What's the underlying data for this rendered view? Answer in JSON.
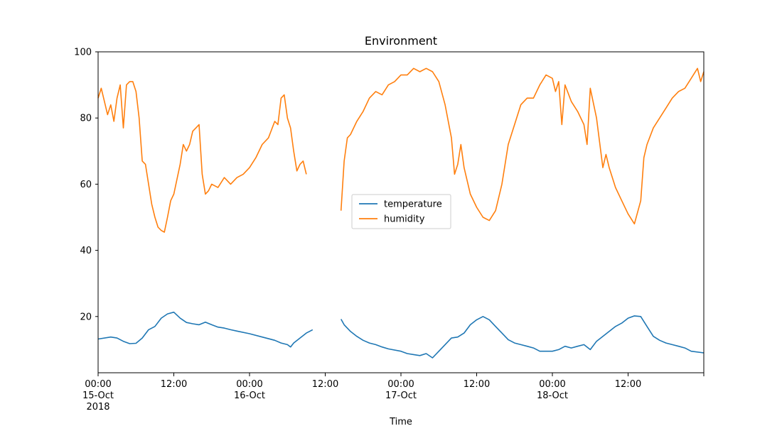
{
  "chart_data": {
    "type": "line",
    "title": "Environment",
    "xlabel": "Time",
    "ylabel": "",
    "xlim": [
      "2018-10-15 00:00",
      "2018-10-19 00:00"
    ],
    "ylim": [
      3,
      100
    ],
    "grid": false,
    "legend_position": "center",
    "x_ticks": [
      {
        "at": "2018-10-15 00:00",
        "lines": [
          "00:00",
          "15-Oct",
          "2018"
        ]
      },
      {
        "at": "2018-10-15 12:00",
        "lines": [
          "12:00"
        ]
      },
      {
        "at": "2018-10-16 00:00",
        "lines": [
          "00:00",
          "16-Oct"
        ]
      },
      {
        "at": "2018-10-16 12:00",
        "lines": [
          "12:00"
        ]
      },
      {
        "at": "2018-10-17 00:00",
        "lines": [
          "00:00",
          "17-Oct"
        ]
      },
      {
        "at": "2018-10-17 12:00",
        "lines": [
          "12:00"
        ]
      },
      {
        "at": "2018-10-18 00:00",
        "lines": [
          "00:00",
          "18-Oct"
        ]
      },
      {
        "at": "2018-10-18 12:00",
        "lines": [
          "12:00"
        ]
      },
      {
        "at": "2018-10-19 00:00",
        "lines": []
      }
    ],
    "y_ticks": [
      20,
      40,
      60,
      80,
      100
    ],
    "series": [
      {
        "name": "temperature",
        "color": "#1f77b4",
        "segments": [
          [
            [
              "2018-10-15 00:00",
              13.2
            ],
            [
              "2018-10-15 02:00",
              13.8
            ],
            [
              "2018-10-15 03:00",
              13.5
            ],
            [
              "2018-10-15 04:00",
              12.5
            ],
            [
              "2018-10-15 05:00",
              11.8
            ],
            [
              "2018-10-15 06:00",
              11.9
            ],
            [
              "2018-10-15 07:00",
              13.5
            ],
            [
              "2018-10-15 08:00",
              16.0
            ],
            [
              "2018-10-15 09:00",
              17.0
            ],
            [
              "2018-10-15 10:00",
              19.5
            ],
            [
              "2018-10-15 11:00",
              20.8
            ],
            [
              "2018-10-15 12:00",
              21.3
            ],
            [
              "2018-10-15 13:00",
              19.5
            ],
            [
              "2018-10-15 14:00",
              18.2
            ],
            [
              "2018-10-15 15:00",
              17.8
            ],
            [
              "2018-10-15 16:00",
              17.5
            ],
            [
              "2018-10-15 17:00",
              18.3
            ],
            [
              "2018-10-15 18:00",
              17.5
            ],
            [
              "2018-10-15 19:00",
              16.8
            ],
            [
              "2018-10-15 20:00",
              16.5
            ],
            [
              "2018-10-15 21:00",
              16.0
            ],
            [
              "2018-10-15 22:00",
              15.6
            ],
            [
              "2018-10-16 00:00",
              14.8
            ],
            [
              "2018-10-16 02:00",
              13.8
            ],
            [
              "2018-10-16 04:00",
              12.8
            ],
            [
              "2018-10-16 05:00",
              12.0
            ],
            [
              "2018-10-16 06:00",
              11.5
            ],
            [
              "2018-10-16 06:30",
              10.8
            ],
            [
              "2018-10-16 07:00",
              12.0
            ],
            [
              "2018-10-16 08:00",
              13.5
            ],
            [
              "2018-10-16 09:00",
              15.0
            ],
            [
              "2018-10-16 09:30",
              15.5
            ],
            [
              "2018-10-16 10:00",
              16.0
            ]
          ],
          [
            [
              "2018-10-16 14:30",
              19.2
            ],
            [
              "2018-10-16 15:00",
              17.5
            ],
            [
              "2018-10-16 16:00",
              15.5
            ],
            [
              "2018-10-16 17:00",
              14.0
            ],
            [
              "2018-10-16 18:00",
              12.8
            ],
            [
              "2018-10-16 19:00",
              12.0
            ],
            [
              "2018-10-16 20:00",
              11.5
            ],
            [
              "2018-10-16 21:00",
              10.8
            ],
            [
              "2018-10-16 22:00",
              10.2
            ],
            [
              "2018-10-17 00:00",
              9.5
            ],
            [
              "2018-10-17 01:00",
              8.8
            ],
            [
              "2018-10-17 02:00",
              8.5
            ],
            [
              "2018-10-17 03:00",
              8.2
            ],
            [
              "2018-10-17 04:00",
              8.8
            ],
            [
              "2018-10-17 05:00",
              7.5
            ],
            [
              "2018-10-17 06:00",
              9.5
            ],
            [
              "2018-10-17 07:00",
              11.5
            ],
            [
              "2018-10-17 08:00",
              13.5
            ],
            [
              "2018-10-17 09:00",
              13.8
            ],
            [
              "2018-10-17 10:00",
              15.0
            ],
            [
              "2018-10-17 11:00",
              17.5
            ],
            [
              "2018-10-17 12:00",
              19.0
            ],
            [
              "2018-10-17 13:00",
              20.0
            ],
            [
              "2018-10-17 14:00",
              19.0
            ],
            [
              "2018-10-17 15:00",
              17.0
            ],
            [
              "2018-10-17 16:00",
              15.0
            ],
            [
              "2018-10-17 17:00",
              13.0
            ],
            [
              "2018-10-17 18:00",
              12.0
            ],
            [
              "2018-10-17 19:00",
              11.5
            ],
            [
              "2018-10-17 20:00",
              11.0
            ],
            [
              "2018-10-17 21:00",
              10.5
            ],
            [
              "2018-10-17 22:00",
              9.5
            ],
            [
              "2018-10-18 00:00",
              9.5
            ],
            [
              "2018-10-18 01:00",
              10.0
            ],
            [
              "2018-10-18 02:00",
              11.0
            ],
            [
              "2018-10-18 03:00",
              10.5
            ],
            [
              "2018-10-18 04:00",
              11.0
            ],
            [
              "2018-10-18 05:00",
              11.5
            ],
            [
              "2018-10-18 06:00",
              10.0
            ],
            [
              "2018-10-18 07:00",
              12.5
            ],
            [
              "2018-10-18 08:00",
              14.0
            ],
            [
              "2018-10-18 09:00",
              15.5
            ],
            [
              "2018-10-18 10:00",
              17.0
            ],
            [
              "2018-10-18 11:00",
              18.0
            ],
            [
              "2018-10-18 12:00",
              19.5
            ],
            [
              "2018-10-18 13:00",
              20.2
            ],
            [
              "2018-10-18 14:00",
              20.0
            ],
            [
              "2018-10-18 15:00",
              17.0
            ],
            [
              "2018-10-18 16:00",
              14.0
            ],
            [
              "2018-10-18 17:00",
              12.8
            ],
            [
              "2018-10-18 18:00",
              12.0
            ],
            [
              "2018-10-18 19:00",
              11.5
            ],
            [
              "2018-10-18 20:00",
              11.0
            ],
            [
              "2018-10-18 21:00",
              10.5
            ],
            [
              "2018-10-18 22:00",
              9.5
            ],
            [
              "2018-10-19 00:00",
              9.0
            ]
          ]
        ]
      },
      {
        "name": "humidity",
        "color": "#ff7f0e",
        "segments": [
          [
            [
              "2018-10-15 00:00",
              86
            ],
            [
              "2018-10-15 00:30",
              89
            ],
            [
              "2018-10-15 01:00",
              85
            ],
            [
              "2018-10-15 01:30",
              81
            ],
            [
              "2018-10-15 02:00",
              84
            ],
            [
              "2018-10-15 02:30",
              79
            ],
            [
              "2018-10-15 03:00",
              86
            ],
            [
              "2018-10-15 03:30",
              90
            ],
            [
              "2018-10-15 04:00",
              77
            ],
            [
              "2018-10-15 04:30",
              90
            ],
            [
              "2018-10-15 05:00",
              91
            ],
            [
              "2018-10-15 05:30",
              91
            ],
            [
              "2018-10-15 06:00",
              88
            ],
            [
              "2018-10-15 06:30",
              80
            ],
            [
              "2018-10-15 07:00",
              67
            ],
            [
              "2018-10-15 07:30",
              66
            ],
            [
              "2018-10-15 08:00",
              60
            ],
            [
              "2018-10-15 08:30",
              54
            ],
            [
              "2018-10-15 09:00",
              50
            ],
            [
              "2018-10-15 09:30",
              47
            ],
            [
              "2018-10-15 10:00",
              46
            ],
            [
              "2018-10-15 10:30",
              45.5
            ],
            [
              "2018-10-15 11:00",
              50
            ],
            [
              "2018-10-15 11:30",
              55
            ],
            [
              "2018-10-15 12:00",
              57
            ],
            [
              "2018-10-15 13:00",
              66
            ],
            [
              "2018-10-15 13:30",
              72
            ],
            [
              "2018-10-15 14:00",
              70
            ],
            [
              "2018-10-15 14:30",
              72
            ],
            [
              "2018-10-15 15:00",
              76
            ],
            [
              "2018-10-15 15:30",
              77
            ],
            [
              "2018-10-15 16:00",
              78
            ],
            [
              "2018-10-15 16:30",
              63
            ],
            [
              "2018-10-15 17:00",
              57
            ],
            [
              "2018-10-15 17:30",
              58
            ],
            [
              "2018-10-15 18:00",
              60
            ],
            [
              "2018-10-15 19:00",
              59
            ],
            [
              "2018-10-15 20:00",
              62
            ],
            [
              "2018-10-15 21:00",
              60
            ],
            [
              "2018-10-15 22:00",
              62
            ],
            [
              "2018-10-15 23:00",
              63
            ],
            [
              "2018-10-16 00:00",
              65
            ],
            [
              "2018-10-16 01:00",
              68
            ],
            [
              "2018-10-16 02:00",
              72
            ],
            [
              "2018-10-16 03:00",
              74
            ],
            [
              "2018-10-16 04:00",
              79
            ],
            [
              "2018-10-16 04:30",
              78
            ],
            [
              "2018-10-16 05:00",
              86
            ],
            [
              "2018-10-16 05:30",
              87
            ],
            [
              "2018-10-16 06:00",
              80
            ],
            [
              "2018-10-16 06:30",
              77
            ],
            [
              "2018-10-16 07:00",
              70
            ],
            [
              "2018-10-16 07:30",
              64
            ],
            [
              "2018-10-16 08:00",
              66
            ],
            [
              "2018-10-16 08:30",
              67
            ],
            [
              "2018-10-16 09:00",
              63
            ]
          ],
          [
            [
              "2018-10-16 14:30",
              52
            ],
            [
              "2018-10-16 15:00",
              67
            ],
            [
              "2018-10-16 15:30",
              74
            ],
            [
              "2018-10-16 16:00",
              75
            ],
            [
              "2018-10-16 17:00",
              79
            ],
            [
              "2018-10-16 18:00",
              82
            ],
            [
              "2018-10-16 19:00",
              86
            ],
            [
              "2018-10-16 20:00",
              88
            ],
            [
              "2018-10-16 21:00",
              87
            ],
            [
              "2018-10-16 22:00",
              90
            ],
            [
              "2018-10-16 23:00",
              91
            ],
            [
              "2018-10-17 00:00",
              93
            ],
            [
              "2018-10-17 01:00",
              93
            ],
            [
              "2018-10-17 02:00",
              95
            ],
            [
              "2018-10-17 03:00",
              94
            ],
            [
              "2018-10-17 04:00",
              95
            ],
            [
              "2018-10-17 05:00",
              94
            ],
            [
              "2018-10-17 06:00",
              91
            ],
            [
              "2018-10-17 07:00",
              84
            ],
            [
              "2018-10-17 08:00",
              74
            ],
            [
              "2018-10-17 08:30",
              63
            ],
            [
              "2018-10-17 09:00",
              66
            ],
            [
              "2018-10-17 09:30",
              72
            ],
            [
              "2018-10-17 10:00",
              65
            ],
            [
              "2018-10-17 11:00",
              57
            ],
            [
              "2018-10-17 12:00",
              53
            ],
            [
              "2018-10-17 13:00",
              50
            ],
            [
              "2018-10-17 14:00",
              49
            ],
            [
              "2018-10-17 15:00",
              52
            ],
            [
              "2018-10-17 16:00",
              60
            ],
            [
              "2018-10-17 17:00",
              72
            ],
            [
              "2018-10-17 18:00",
              78
            ],
            [
              "2018-10-17 19:00",
              84
            ],
            [
              "2018-10-17 20:00",
              86
            ],
            [
              "2018-10-17 21:00",
              86
            ],
            [
              "2018-10-17 22:00",
              90
            ],
            [
              "2018-10-17 23:00",
              93
            ],
            [
              "2018-10-18 00:00",
              92
            ],
            [
              "2018-10-18 00:30",
              88
            ],
            [
              "2018-10-18 01:00",
              91
            ],
            [
              "2018-10-18 01:30",
              78
            ],
            [
              "2018-10-18 02:00",
              90
            ],
            [
              "2018-10-18 03:00",
              85
            ],
            [
              "2018-10-18 04:00",
              82
            ],
            [
              "2018-10-18 05:00",
              78
            ],
            [
              "2018-10-18 05:30",
              72
            ],
            [
              "2018-10-18 06:00",
              89
            ],
            [
              "2018-10-18 07:00",
              80
            ],
            [
              "2018-10-18 08:00",
              65
            ],
            [
              "2018-10-18 08:30",
              69
            ],
            [
              "2018-10-18 09:00",
              65
            ],
            [
              "2018-10-18 10:00",
              59
            ],
            [
              "2018-10-18 11:00",
              55
            ],
            [
              "2018-10-18 12:00",
              51
            ],
            [
              "2018-10-18 13:00",
              48
            ],
            [
              "2018-10-18 14:00",
              55
            ],
            [
              "2018-10-18 14:30",
              68
            ],
            [
              "2018-10-18 15:00",
              72
            ],
            [
              "2018-10-18 16:00",
              77
            ],
            [
              "2018-10-18 17:00",
              80
            ],
            [
              "2018-10-18 18:00",
              83
            ],
            [
              "2018-10-18 19:00",
              86
            ],
            [
              "2018-10-18 20:00",
              88
            ],
            [
              "2018-10-18 21:00",
              89
            ],
            [
              "2018-10-18 22:00",
              92
            ],
            [
              "2018-10-18 23:00",
              95
            ],
            [
              "2018-10-18 23:30",
              91
            ],
            [
              "2018-10-19 00:00",
              94
            ]
          ]
        ]
      }
    ]
  }
}
